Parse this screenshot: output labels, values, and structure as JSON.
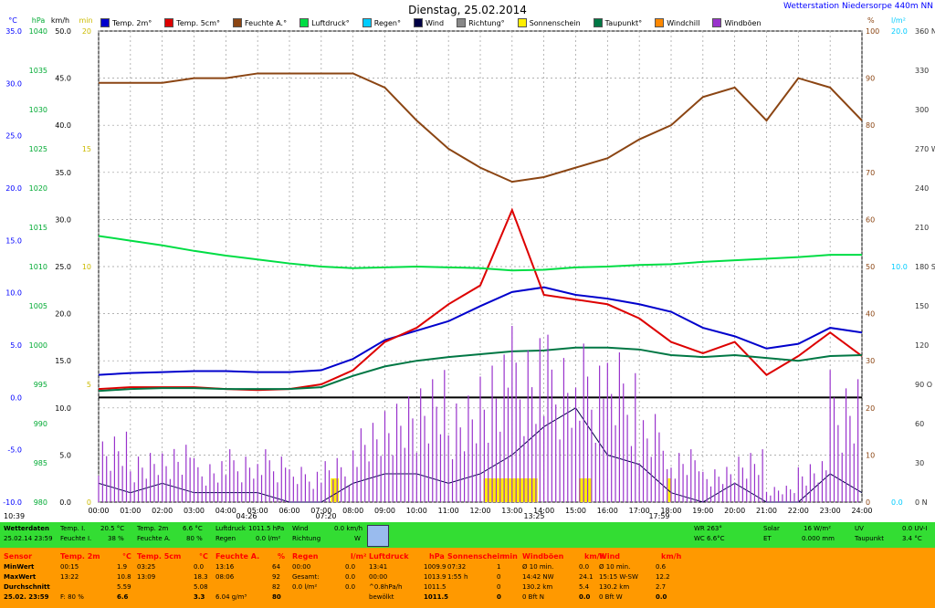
{
  "title": "Dienstag, 25.02.2014",
  "station": "Wetterstation Niedersorpe 440m NN",
  "legend": [
    {
      "label": "Temp. 2m°",
      "color": "#0000cc"
    },
    {
      "label": "Temp. 5cm°",
      "color": "#dd0000"
    },
    {
      "label": "Feuchte A.°",
      "color": "#8b4513"
    },
    {
      "label": "Luftdruck°",
      "color": "#00dd44"
    },
    {
      "label": "Regen°",
      "color": "#00ccff"
    },
    {
      "label": "Wind",
      "color": "#000044"
    },
    {
      "label": "Richtung°",
      "color": "#888888"
    },
    {
      "label": "Sonnenschein",
      "color": "#ffee00"
    },
    {
      "label": "Taupunkt°",
      "color": "#007744"
    },
    {
      "label": "Windchill",
      "color": "#ff8800"
    },
    {
      "label": "Windböen",
      "color": "#9933cc"
    }
  ],
  "axis_units": {
    "temp": "°C",
    "pressure": "hPa",
    "wind": "km/h",
    "sun": "min",
    "humidity": "%",
    "rain": "l/m²"
  },
  "axis_ticks": {
    "temp": [
      "35.0",
      "30.0",
      "25.0",
      "20.0",
      "15.0",
      "10.0",
      "5.0",
      "0.0",
      "-5.0",
      "-10.0"
    ],
    "pressure": [
      "1040",
      "1035",
      "1030",
      "1025",
      "1020",
      "1015",
      "1010",
      "1005",
      "1000",
      "995",
      "990",
      "985",
      "980"
    ],
    "wind": [
      "50.0",
      "45.0",
      "40.0",
      "35.0",
      "30.0",
      "25.0",
      "20.0",
      "15.0",
      "10.0",
      "5.0",
      "0.0"
    ],
    "sun": [
      "20",
      "15",
      "10",
      "5",
      "0"
    ],
    "humidity": [
      "100",
      "90",
      "80",
      "70",
      "60",
      "50",
      "40",
      "30",
      "20",
      "10",
      "0"
    ],
    "rain": [
      "20.0",
      "10.0",
      "0.0"
    ],
    "direction": [
      "360 N",
      "330",
      "300",
      "270 W",
      "240",
      "210",
      "180 S",
      "150",
      "120",
      "90 O",
      "60",
      "30",
      "0 N"
    ]
  },
  "x_labels": [
    "00:00",
    "01:00",
    "02:00",
    "03:00",
    "04:00",
    "05:00",
    "06:00",
    "07:00",
    "08:00",
    "09:00",
    "10:00",
    "11:00",
    "12:00",
    "13:00",
    "14:00",
    "15:00",
    "16:00",
    "17:00",
    "18:00",
    "19:00",
    "20:00",
    "21:00",
    "22:00",
    "23:00",
    "24:00"
  ],
  "markers": {
    "left_time": "10:39",
    "sunrise": "07:20",
    "moon": "04:26",
    "noon": "13:25",
    "sunset": "17:59"
  },
  "chart_data": {
    "type": "line",
    "title": "Dienstag, 25.02.2014",
    "x": [
      "00:00",
      "01:00",
      "02:00",
      "03:00",
      "04:00",
      "05:00",
      "06:00",
      "07:00",
      "08:00",
      "09:00",
      "10:00",
      "11:00",
      "12:00",
      "13:00",
      "14:00",
      "15:00",
      "16:00",
      "17:00",
      "18:00",
      "19:00",
      "20:00",
      "21:00",
      "22:00",
      "23:00",
      "24:00"
    ],
    "series": [
      {
        "name": "Temp. 2m°",
        "axis": "wind",
        "values": [
          13.5,
          13.7,
          13.8,
          13.9,
          13.9,
          13.8,
          13.8,
          14.0,
          15.2,
          17.2,
          18.2,
          19.2,
          20.8,
          22.3,
          22.8,
          22.0,
          21.6,
          21.0,
          20.2,
          18.5,
          17.6,
          16.3,
          16.8,
          18.5,
          18.0
        ]
      },
      {
        "name": "Temp. 5cm°",
        "axis": "wind",
        "values": [
          12.0,
          12.2,
          12.2,
          12.2,
          12.0,
          11.9,
          12.0,
          12.5,
          14.0,
          17.0,
          18.5,
          21.0,
          23.0,
          31.0,
          22.0,
          21.5,
          21.0,
          19.5,
          17.0,
          15.8,
          17.0,
          13.5,
          15.5,
          18.0,
          15.5
        ]
      },
      {
        "name": "Feuchte A.°",
        "axis": "humidity",
        "values": [
          89,
          89,
          89,
          90,
          90,
          91,
          91,
          91,
          91,
          88,
          81,
          75,
          71,
          68,
          69,
          71,
          73,
          77,
          80,
          86,
          88,
          81,
          90,
          88,
          81
        ]
      },
      {
        "name": "Luftdruck°",
        "axis": "pressure",
        "values": [
          1013.9,
          1013.3,
          1012.7,
          1012.0,
          1011.4,
          1010.9,
          1010.4,
          1010.0,
          1009.8,
          1009.9,
          1010.0,
          1009.9,
          1009.8,
          1009.5,
          1009.6,
          1009.9,
          1010.0,
          1010.2,
          1010.3,
          1010.6,
          1010.8,
          1011.0,
          1011.2,
          1011.5,
          1011.5
        ]
      },
      {
        "name": "Taupunkt°",
        "axis": "wind",
        "values": [
          11.8,
          12.0,
          12.1,
          12.1,
          12.0,
          12.0,
          12.0,
          12.2,
          13.4,
          14.4,
          15.0,
          15.4,
          15.7,
          16.0,
          16.1,
          16.4,
          16.4,
          16.2,
          15.6,
          15.4,
          15.6,
          15.3,
          15.0,
          15.5,
          15.6
        ]
      },
      {
        "name": "Wind",
        "axis": "wind",
        "values": [
          2,
          1,
          2,
          1,
          1,
          1,
          0,
          0,
          2,
          3,
          3,
          2,
          3,
          5,
          8,
          10,
          5,
          4,
          1,
          0,
          2,
          0,
          0,
          3,
          1
        ]
      },
      {
        "name": "Windböen",
        "axis": "wind",
        "values": [
          8,
          6,
          7,
          5,
          6,
          6,
          4,
          5,
          9,
          12,
          15,
          13,
          18,
          20,
          19,
          18,
          17,
          10,
          6,
          4,
          6,
          2,
          5,
          15,
          6
        ]
      }
    ],
    "ylim_wind": [
      0,
      50
    ],
    "ylim_humidity": [
      0,
      100
    ],
    "ylim_pressure": [
      980,
      1040
    ]
  },
  "footer": {
    "row1": {
      "wetterdaten": "Wetterdaten",
      "date": "25.02.14 23:59",
      "temp_i_label": "Temp. I.",
      "temp_i": "20.5 °C",
      "feuchte_i_label": "Feuchte I.",
      "feuchte_i": "38 %",
      "temp_2m_label": "Temp. 2m",
      "temp_2m": "6.6 °C",
      "feuchte_a_label": "Feuchte A.",
      "feuchte_a": "80 %",
      "luftdruck_label": "Luftdruck",
      "luftdruck": "1011.5 hPa",
      "regen_label": "Regen",
      "regen": "0.0 l/m²",
      "wind_label": "Wind",
      "wind": "0.0 km/h",
      "richtung_label": "Richtung",
      "richtung": "W",
      "wr": "WR 263°",
      "wc": "WC 6.6°C",
      "solar_label": "Solar",
      "solar": "16 W/m²",
      "et_label": "ET",
      "et": "0.000 mm",
      "uv_label": "UV",
      "uv": "0.0 UV-I",
      "taupunkt_label": "Taupunkt",
      "taupunkt": "3.4 °C"
    },
    "table": {
      "headers": {
        "sensor": "Sensor",
        "temp2m": "Temp. 2m",
        "temp2m_unit": "°C",
        "temp5cm": "Temp. 5cm",
        "temp5cm_unit": "°C",
        "feuchte": "Feuchte A.",
        "feuchte_unit": "%",
        "regen": "Regen",
        "regen_unit": "l/m²",
        "luftdruck": "Luftdruck",
        "luftdruck_unit": "hPa",
        "sonne": "Sonnenschein",
        "sonne_unit": "min",
        "boeen": "Windböen",
        "boeen_unit": "km/h",
        "wind": "Wind",
        "wind_unit": "km/h"
      },
      "row_labels": [
        "MinWert",
        "MaxWert",
        "Durchschnitt",
        "25.02. 23:59"
      ],
      "temp2m": [
        [
          "00:15",
          "1.9"
        ],
        [
          "13:22",
          "10.8"
        ],
        [
          "",
          "5.59"
        ],
        [
          "F: 80 %",
          "6.6"
        ]
      ],
      "temp5cm": [
        [
          "03:25",
          "0.0"
        ],
        [
          "13:09",
          "18.3"
        ],
        [
          "",
          "5.08"
        ],
        [
          "",
          "3.3"
        ]
      ],
      "feuchte": [
        [
          "13:16",
          "64"
        ],
        [
          "08:06",
          "92"
        ],
        [
          "",
          "82"
        ],
        [
          "6.04 g/m³",
          "80"
        ]
      ],
      "regen": [
        [
          "00:00",
          "0.0"
        ],
        [
          "Gesamt:",
          "0.0"
        ],
        [
          "0.0 l/m²",
          "0.0"
        ],
        [
          "",
          ""
        ]
      ],
      "luftdruck": [
        [
          "13:41",
          "1009.9"
        ],
        [
          "00:00",
          "1013.9"
        ],
        [
          "^0.8hPa/h",
          "1011.5"
        ],
        [
          "bewölkt",
          "1011.5"
        ]
      ],
      "sonne": [
        [
          "07:32",
          "1"
        ],
        [
          "1:55 h",
          "0"
        ],
        [
          "",
          "0"
        ],
        [
          "",
          "0"
        ]
      ],
      "boeen": [
        [
          "Ø 10 min.",
          "0.0"
        ],
        [
          "14:42 NW",
          "24.1"
        ],
        [
          "130.2 km",
          "5.4"
        ],
        [
          "0 Bft N",
          "0.0"
        ]
      ],
      "wind": [
        [
          "Ø 10 min.",
          "0.6"
        ],
        [
          "15:15 W-SW",
          "12.2"
        ],
        [
          "130.2 km",
          "2.7"
        ],
        [
          "0 Bft W",
          "0.0"
        ]
      ]
    }
  }
}
